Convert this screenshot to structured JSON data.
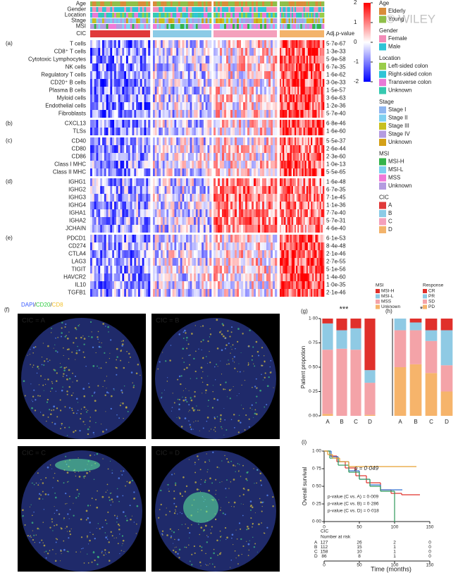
{
  "watermark": "© WILEY",
  "heatmap": {
    "annotation_rows": [
      "Age",
      "Gender",
      "Location",
      "Stage",
      "MSI",
      "CIC"
    ],
    "pvalue_header": "Adj.p-value",
    "colorbar_ticks": [
      2,
      1,
      0,
      -1,
      -2
    ],
    "groups": [
      {
        "label": "(a)",
        "rows": [
          {
            "name": "T cells",
            "p": "5·7e-67"
          },
          {
            "name": "CD8⁺ T cells",
            "p": "1·3e-33"
          },
          {
            "name": "Cytotoxic Lymphocytes",
            "p": "5·9e-58"
          },
          {
            "name": "NK cells",
            "p": "6·7e-35"
          },
          {
            "name": "Regulatory T cells",
            "p": "1·6e-62"
          },
          {
            "name": "CD20⁺ B cells",
            "p": "3·0e-33"
          },
          {
            "name": "Plasma B cells",
            "p": "1·5e-57"
          },
          {
            "name": "Myloid cells",
            "p": "3·6e-63"
          },
          {
            "name": "Endothelial cells",
            "p": "1·2e-36"
          },
          {
            "name": "Fibroblasts",
            "p": "5·7e-40"
          }
        ]
      },
      {
        "label": "(b)",
        "rows": [
          {
            "name": "CXCL13",
            "p": "6·8e-46"
          },
          {
            "name": "TLSs",
            "p": "1·6e-60"
          }
        ]
      },
      {
        "label": "(c)",
        "rows": [
          {
            "name": "CD40",
            "p": "5·5e-37"
          },
          {
            "name": "CD80",
            "p": "2·6e-44"
          },
          {
            "name": "CD86",
            "p": "2·3e-60"
          },
          {
            "name": "Class I MHC",
            "p": "1·0e-13"
          },
          {
            "name": "Class II MHC",
            "p": "5·5e-65"
          }
        ]
      },
      {
        "label": "(d)",
        "rows": [
          {
            "name": "IGHG1",
            "p": "1·6e-48"
          },
          {
            "name": "IGHG2",
            "p": "6·7e-35"
          },
          {
            "name": "IGHG3",
            "p": "7·1e-45"
          },
          {
            "name": "IGHG4",
            "p": "1·1e-36"
          },
          {
            "name": "IGHA1",
            "p": "7·7e-40"
          },
          {
            "name": "IGHA2",
            "p": "5·7e-31"
          },
          {
            "name": "JCHAIN",
            "p": "4·6e-40"
          }
        ]
      },
      {
        "label": "(e)",
        "rows": [
          {
            "name": "PDCD1",
            "p": "6·1e-53"
          },
          {
            "name": "CD274",
            "p": "8·4e-48"
          },
          {
            "name": "CTLA4",
            "p": "2·1e-46"
          },
          {
            "name": "LAG3",
            "p": "2·7e-55"
          },
          {
            "name": "TIGIT",
            "p": "5·1e-56"
          },
          {
            "name": "HAVCR2",
            "p": "1·4e-60"
          },
          {
            "name": "IL10",
            "p": "1·0e-35"
          },
          {
            "name": "TGFB1",
            "p": "2·1e-46"
          }
        ]
      }
    ]
  },
  "legend": [
    {
      "title": "Age",
      "items": [
        {
          "label": "Elderly",
          "color": "#d98c3a"
        },
        {
          "label": "Young",
          "color": "#8fbf4a"
        }
      ]
    },
    {
      "title": "Gender",
      "items": [
        {
          "label": "Female",
          "color": "#f28cb8"
        },
        {
          "label": "Male",
          "color": "#2ec4d6"
        }
      ]
    },
    {
      "title": "Location",
      "items": [
        {
          "label": "Left-sided colon",
          "color": "#9acd4a"
        },
        {
          "label": "Right-sided colon",
          "color": "#2ec4d6"
        },
        {
          "label": "Transverse colon",
          "color": "#e87ad6"
        },
        {
          "label": "Unknown",
          "color": "#36c9b0"
        }
      ]
    },
    {
      "title": "Stage",
      "items": [
        {
          "label": "Stage I",
          "color": "#8fb6f0"
        },
        {
          "label": "Stage II",
          "color": "#7fd0f0"
        },
        {
          "label": "Stage III",
          "color": "#c8c020"
        },
        {
          "label": "Stage IV",
          "color": "#b49be0"
        },
        {
          "label": "Unknown",
          "color": "#d4a017"
        }
      ]
    },
    {
      "title": "MSI",
      "items": [
        {
          "label": "MSI-H",
          "color": "#34b34a"
        },
        {
          "label": "MSI-L",
          "color": "#7fd0f0"
        },
        {
          "label": "MSS",
          "color": "#f07ad8"
        },
        {
          "label": "Unknown",
          "color": "#b49be0"
        }
      ]
    },
    {
      "title": "CIC",
      "items": [
        {
          "label": "A",
          "color": "#e03a3a"
        },
        {
          "label": "B",
          "color": "#8ccbe6"
        },
        {
          "label": "C",
          "color": "#f4a0bc"
        },
        {
          "label": "D",
          "color": "#f3b36b"
        }
      ]
    }
  ],
  "panel_f": {
    "label": "(f)",
    "stains": [
      {
        "text": "DAPI",
        "color": "#3a5bff"
      },
      {
        "text": "/",
        "color": "#222222"
      },
      {
        "text": "CD20",
        "color": "#2ecc40"
      },
      {
        "text": "/",
        "color": "#222222"
      },
      {
        "text": "CD8",
        "color": "#f2c230"
      }
    ],
    "images": [
      {
        "label": "CIC = A",
        "color": "#ff3030"
      },
      {
        "label": "CIC = B",
        "color": "#9fe8f0"
      },
      {
        "label": "CIC = C",
        "color": "#ff7070"
      },
      {
        "label": "CIC = D",
        "color": "#f7a850"
      }
    ]
  },
  "chart_data": [
    {
      "type": "stacked-bar",
      "label": "(g)",
      "y_label": "Patient propotion",
      "annotation": "***",
      "legend_title": "MSI",
      "categories": [
        "A",
        "B",
        "C",
        "D"
      ],
      "series": [
        {
          "name": "Unknown",
          "color": "#f6b46b",
          "values": [
            0.02,
            0,
            0,
            0.01
          ]
        },
        {
          "name": "MSS",
          "color": "#f4a3a8",
          "values": [
            0.66,
            0.69,
            0.68,
            0.33
          ]
        },
        {
          "name": "MSI-L",
          "color": "#8fcae4",
          "values": [
            0.27,
            0.19,
            0.22,
            0.13
          ]
        },
        {
          "name": "MSI-H",
          "color": "#e0302b",
          "values": [
            0.05,
            0.12,
            0.1,
            0.53
          ]
        }
      ],
      "ylim": [
        0,
        1
      ],
      "yticks": [
        {
          "value": 0,
          "label": "0·00"
        },
        {
          "value": 0.25,
          "label": "0·25"
        },
        {
          "value": 0.5,
          "label": "0·50"
        },
        {
          "value": 0.75,
          "label": "0·75"
        },
        {
          "value": 1,
          "label": "1·00"
        }
      ]
    },
    {
      "type": "stacked-bar",
      "label": "(h)",
      "annotation": "*",
      "legend_title": "Response",
      "categories": [
        "A",
        "B",
        "C",
        "D"
      ],
      "series": [
        {
          "name": "PD",
          "color": "#f6b46b",
          "values": [
            0.5,
            0.53,
            0.44,
            0.25
          ]
        },
        {
          "name": "SD",
          "color": "#f4a3a8",
          "values": [
            0.38,
            0.35,
            0.33,
            0.27
          ]
        },
        {
          "name": "PR",
          "color": "#8fcae4",
          "values": [
            0.12,
            0.08,
            0.11,
            0.36
          ]
        },
        {
          "name": "CR",
          "color": "#e0302b",
          "values": [
            0,
            0.04,
            0.12,
            0.12
          ]
        }
      ],
      "ylim": [
        0,
        1
      ]
    },
    {
      "type": "km",
      "label": "(i)",
      "y_label": "Overall survival",
      "x_label": "Time (months)",
      "annotations": [
        "p = 0·049",
        "p-value (C vs. A) = 0·009",
        "p-value (C vs. B) = 0·286",
        "p-value (C vs. D) = 0·018"
      ],
      "series": [
        {
          "name": "A",
          "color": "#e0302b",
          "x": [
            0,
            8,
            18,
            30,
            45,
            60,
            80,
            95,
            110,
            135
          ],
          "values": [
            1,
            0.93,
            0.85,
            0.76,
            0.65,
            0.55,
            0.45,
            0.4,
            0.38,
            0.38
          ]
        },
        {
          "name": "B",
          "color": "#2f6fd0",
          "x": [
            0,
            10,
            20,
            35,
            50,
            65,
            80,
            110
          ],
          "values": [
            1,
            0.92,
            0.85,
            0.72,
            0.6,
            0.52,
            0.45,
            0.45
          ]
        },
        {
          "name": "C",
          "color": "#2e9a5a",
          "x": [
            0,
            8,
            20,
            35,
            50,
            65,
            80,
            100
          ],
          "values": [
            1,
            0.9,
            0.8,
            0.7,
            0.6,
            0.5,
            0.43,
            0
          ]
        },
        {
          "name": "D",
          "color": "#e8a030",
          "x": [
            0,
            5,
            12,
            22,
            35,
            130
          ],
          "values": [
            1,
            0.95,
            0.9,
            0.85,
            0.78,
            0.78
          ]
        }
      ],
      "xlim": [
        0,
        150
      ],
      "xticks": [
        0,
        50,
        100,
        150
      ],
      "ylim": [
        0,
        1
      ],
      "yticks": [
        {
          "value": 0,
          "label": "0·00"
        },
        {
          "value": 0.25,
          "label": "0·25"
        },
        {
          "value": 0.5,
          "label": "0·50"
        },
        {
          "value": 0.75,
          "label": "0·75"
        },
        {
          "value": 1,
          "label": "1·00"
        }
      ],
      "risk_table": {
        "label": "CIC",
        "title": "Number at risk",
        "rows": [
          [
            127,
            26,
            2,
            0
          ],
          [
            112,
            15,
            1,
            0
          ],
          [
            158,
            10,
            1,
            0
          ],
          [
            86,
            8,
            1,
            0
          ]
        ]
      }
    }
  ]
}
